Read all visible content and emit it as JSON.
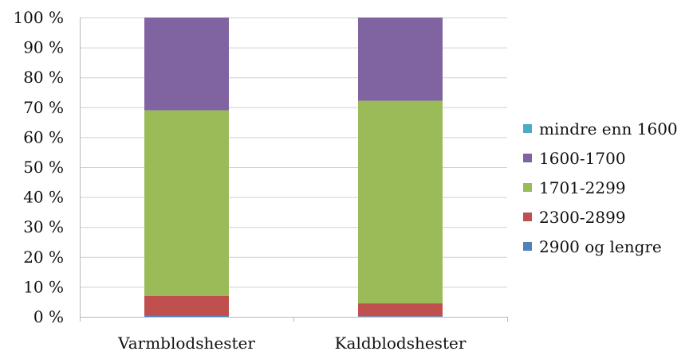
{
  "chart_data": {
    "type": "bar",
    "stacked": true,
    "percent_stacked": true,
    "categories": [
      "Varmblodshester",
      "Kaldblodshester"
    ],
    "series": [
      {
        "name": "2900 og lengre",
        "color": "#4f81bd",
        "values": [
          0.4,
          0.2
        ]
      },
      {
        "name": "2300-2899",
        "color": "#c0504d",
        "values": [
          6.6,
          4.3
        ]
      },
      {
        "name": "1701-2299",
        "color": "#9bbb59",
        "values": [
          62.0,
          67.7
        ]
      },
      {
        "name": "1600-1700",
        "color": "#8064a2",
        "values": [
          31.0,
          27.8
        ]
      },
      {
        "name": "mindre enn 1600",
        "color": "#4bacc6",
        "values": [
          0.0,
          0.0
        ]
      }
    ],
    "legend_order": [
      "mindre enn 1600",
      "1600-1700",
      "1701-2299",
      "2300-2899",
      "2900 og lengre"
    ],
    "ylim": [
      0,
      100
    ],
    "yticks": [
      0,
      10,
      20,
      30,
      40,
      50,
      60,
      70,
      80,
      90,
      100
    ],
    "ytick_labels": [
      "0 %",
      "10 %",
      "20 %",
      "30 %",
      "40 %",
      "50 %",
      "60 %",
      "70 %",
      "80 %",
      "90 %",
      "100 %"
    ],
    "grid": true,
    "legend_position": "right",
    "title": "",
    "xlabel": "",
    "ylabel": ""
  }
}
